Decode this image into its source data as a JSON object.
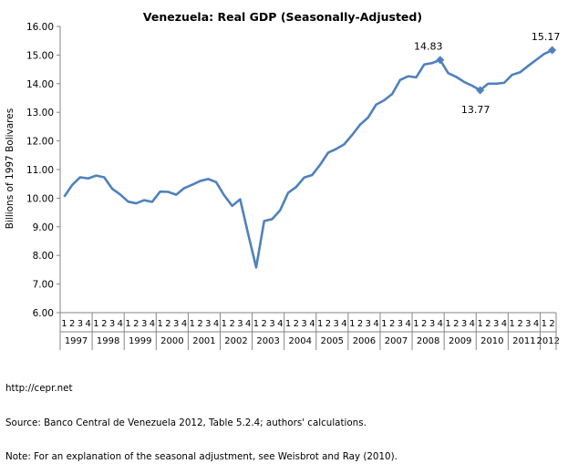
{
  "chart_data": {
    "type": "line",
    "title": "Venezuela: Real GDP (Seasonally-Adjusted)",
    "xlabel": "",
    "ylabel": "Billions of 1997 Bolivares",
    "ylim": [
      6.0,
      16.0
    ],
    "yticks": [
      "6.00",
      "7.00",
      "8.00",
      "9.00",
      "10.00",
      "11.00",
      "12.00",
      "13.00",
      "14.00",
      "15.00",
      "16.00"
    ],
    "grid": false,
    "legend": "none",
    "years": [
      "1997",
      "1998",
      "1999",
      "2000",
      "2001",
      "2002",
      "2003",
      "2004",
      "2005",
      "2006",
      "2007",
      "2008",
      "2009",
      "2010",
      "2011",
      "2012"
    ],
    "quarters_per_year": [
      4,
      4,
      4,
      4,
      4,
      4,
      4,
      4,
      4,
      4,
      4,
      4,
      4,
      4,
      4,
      2
    ],
    "quarter_labels": [
      "1",
      "2",
      "3",
      "4"
    ],
    "series": [
      {
        "values": [
          10.05,
          10.46,
          10.73,
          10.69,
          10.79,
          10.73,
          10.33,
          10.13,
          9.88,
          9.82,
          9.93,
          9.87,
          10.23,
          10.22,
          10.12,
          10.35,
          10.47,
          10.6,
          10.67,
          10.56,
          10.1,
          9.73,
          9.96,
          8.75,
          7.58,
          9.2,
          9.27,
          9.58,
          10.19,
          10.39,
          10.72,
          10.81,
          11.17,
          11.59,
          11.72,
          11.88,
          12.21,
          12.57,
          12.82,
          13.27,
          13.42,
          13.64,
          14.13,
          14.26,
          14.22,
          14.67,
          14.72,
          14.83,
          14.37,
          14.24,
          14.06,
          13.93,
          13.77,
          14.0,
          14.0,
          14.03,
          14.31,
          14.4,
          14.62,
          14.83,
          15.04,
          15.17
        ]
      }
    ],
    "markers": [
      {
        "label": "14.83",
        "index": 47
      },
      {
        "label": "13.77",
        "index": 52
      },
      {
        "label": "15.17",
        "index": 61
      }
    ],
    "colors": {
      "line": "#4f81bd",
      "axis": "#868686"
    }
  },
  "footer": {
    "line1": "http://cepr.net",
    "line2": "Source: Banco Central de Venezuela 2012, Table 5.2.4; authors' calculations.",
    "line3": "Note: For an explanation of the seasonal adjustment, see Weisbrot and Ray (2010)."
  }
}
